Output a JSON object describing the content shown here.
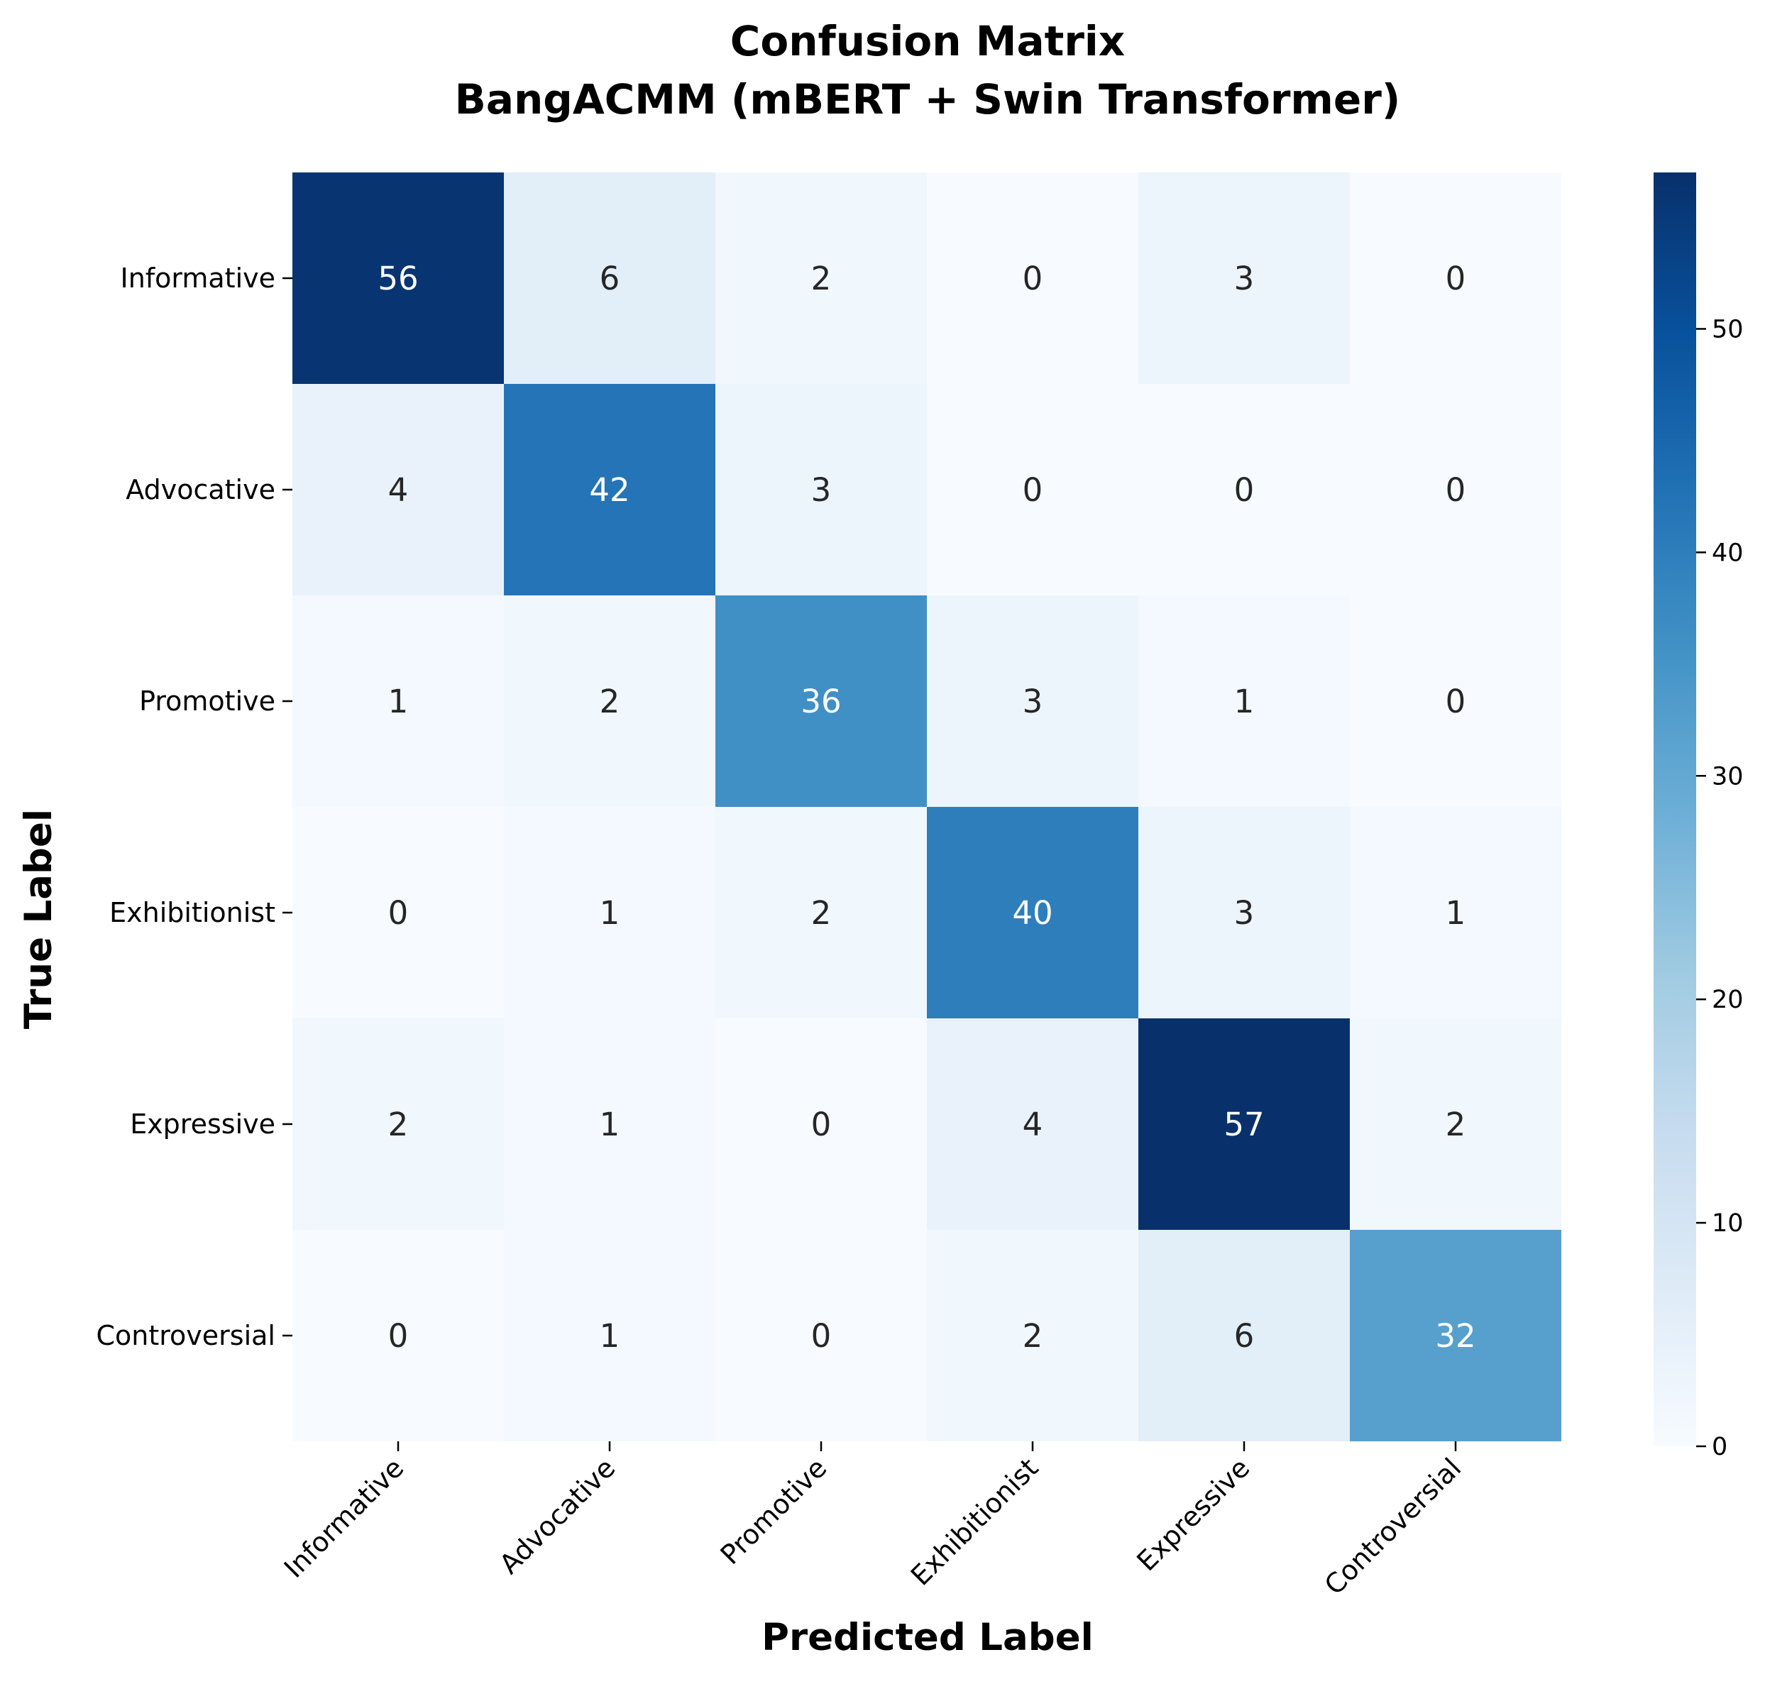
{
  "chart_data": {
    "type": "heatmap",
    "title": "Confusion Matrix",
    "subtitle": "BangACMM (mBERT + Swin Transformer)",
    "xlabel": "Predicted Label",
    "ylabel": "True Label",
    "x_categories": [
      "Informative",
      "Advocative",
      "Promotive",
      "Exhibitionist",
      "Expressive",
      "Controversial"
    ],
    "y_categories": [
      "Informative",
      "Advocative",
      "Promotive",
      "Exhibitionist",
      "Expressive",
      "Controversial"
    ],
    "values": [
      [
        56,
        6,
        2,
        0,
        3,
        0
      ],
      [
        4,
        42,
        3,
        0,
        0,
        0
      ],
      [
        1,
        2,
        36,
        3,
        1,
        0
      ],
      [
        0,
        1,
        2,
        40,
        3,
        1
      ],
      [
        2,
        1,
        0,
        4,
        57,
        2
      ],
      [
        0,
        1,
        0,
        2,
        6,
        32
      ]
    ],
    "colormap": "Blues",
    "colorbar": {
      "range": [
        0,
        57
      ],
      "ticks": [
        0,
        10,
        20,
        30,
        40,
        50
      ]
    },
    "colors": {
      "low": "#f7fbff",
      "high": "#08306b",
      "text_dark": "#262626",
      "text_light": "#ffffff"
    }
  }
}
